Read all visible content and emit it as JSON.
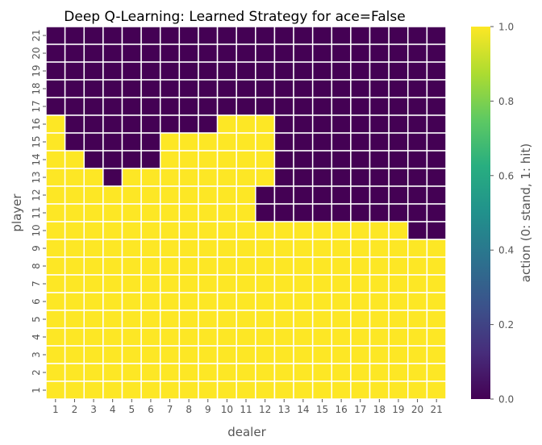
{
  "chart_data": {
    "type": "heatmap",
    "title": "Deep Q-Learning: Learned Strategy for ace=False",
    "xlabel": "dealer",
    "ylabel": "player",
    "x_categories": [
      "1",
      "2",
      "3",
      "4",
      "5",
      "6",
      "7",
      "8",
      "9",
      "10",
      "11",
      "12",
      "13",
      "14",
      "15",
      "16",
      "17",
      "18",
      "19",
      "20",
      "21"
    ],
    "y_categories": [
      "21",
      "20",
      "19",
      "18",
      "17",
      "16",
      "15",
      "14",
      "13",
      "12",
      "11",
      "10",
      "9",
      "8",
      "7",
      "6",
      "5",
      "4",
      "3",
      "2",
      "1"
    ],
    "values": [
      [
        0,
        0,
        0,
        0,
        0,
        0,
        0,
        0,
        0,
        0,
        0,
        0,
        0,
        0,
        0,
        0,
        0,
        0,
        0,
        0,
        0
      ],
      [
        0,
        0,
        0,
        0,
        0,
        0,
        0,
        0,
        0,
        0,
        0,
        0,
        0,
        0,
        0,
        0,
        0,
        0,
        0,
        0,
        0
      ],
      [
        0,
        0,
        0,
        0,
        0,
        0,
        0,
        0,
        0,
        0,
        0,
        0,
        0,
        0,
        0,
        0,
        0,
        0,
        0,
        0,
        0
      ],
      [
        0,
        0,
        0,
        0,
        0,
        0,
        0,
        0,
        0,
        0,
        0,
        0,
        0,
        0,
        0,
        0,
        0,
        0,
        0,
        0,
        0
      ],
      [
        0,
        0,
        0,
        0,
        0,
        0,
        0,
        0,
        0,
        0,
        0,
        0,
        0,
        0,
        0,
        0,
        0,
        0,
        0,
        0,
        0
      ],
      [
        1,
        0,
        0,
        0,
        0,
        0,
        0,
        0,
        0,
        1,
        1,
        1,
        0,
        0,
        0,
        0,
        0,
        0,
        0,
        0,
        0
      ],
      [
        1,
        0,
        0,
        0,
        0,
        0,
        1,
        1,
        1,
        1,
        1,
        1,
        0,
        0,
        0,
        0,
        0,
        0,
        0,
        0,
        0
      ],
      [
        1,
        1,
        0,
        0,
        0,
        0,
        1,
        1,
        1,
        1,
        1,
        1,
        0,
        0,
        0,
        0,
        0,
        0,
        0,
        0,
        0
      ],
      [
        1,
        1,
        1,
        0,
        1,
        1,
        1,
        1,
        1,
        1,
        1,
        1,
        0,
        0,
        0,
        0,
        0,
        0,
        0,
        0,
        0
      ],
      [
        1,
        1,
        1,
        1,
        1,
        1,
        1,
        1,
        1,
        1,
        1,
        0,
        0,
        0,
        0,
        0,
        0,
        0,
        0,
        0,
        0
      ],
      [
        1,
        1,
        1,
        1,
        1,
        1,
        1,
        1,
        1,
        1,
        1,
        0,
        0,
        0,
        0,
        0,
        0,
        0,
        0,
        0,
        0
      ],
      [
        1,
        1,
        1,
        1,
        1,
        1,
        1,
        1,
        1,
        1,
        1,
        1,
        1,
        1,
        1,
        1,
        1,
        1,
        1,
        0,
        0
      ],
      [
        1,
        1,
        1,
        1,
        1,
        1,
        1,
        1,
        1,
        1,
        1,
        1,
        1,
        1,
        1,
        1,
        1,
        1,
        1,
        1,
        1
      ],
      [
        1,
        1,
        1,
        1,
        1,
        1,
        1,
        1,
        1,
        1,
        1,
        1,
        1,
        1,
        1,
        1,
        1,
        1,
        1,
        1,
        1
      ],
      [
        1,
        1,
        1,
        1,
        1,
        1,
        1,
        1,
        1,
        1,
        1,
        1,
        1,
        1,
        1,
        1,
        1,
        1,
        1,
        1,
        1
      ],
      [
        1,
        1,
        1,
        1,
        1,
        1,
        1,
        1,
        1,
        1,
        1,
        1,
        1,
        1,
        1,
        1,
        1,
        1,
        1,
        1,
        1
      ],
      [
        1,
        1,
        1,
        1,
        1,
        1,
        1,
        1,
        1,
        1,
        1,
        1,
        1,
        1,
        1,
        1,
        1,
        1,
        1,
        1,
        1
      ],
      [
        1,
        1,
        1,
        1,
        1,
        1,
        1,
        1,
        1,
        1,
        1,
        1,
        1,
        1,
        1,
        1,
        1,
        1,
        1,
        1,
        1
      ],
      [
        1,
        1,
        1,
        1,
        1,
        1,
        1,
        1,
        1,
        1,
        1,
        1,
        1,
        1,
        1,
        1,
        1,
        1,
        1,
        1,
        1
      ],
      [
        1,
        1,
        1,
        1,
        1,
        1,
        1,
        1,
        1,
        1,
        1,
        1,
        1,
        1,
        1,
        1,
        1,
        1,
        1,
        1,
        1
      ],
      [
        1,
        1,
        1,
        1,
        1,
        1,
        1,
        1,
        1,
        1,
        1,
        1,
        1,
        1,
        1,
        1,
        1,
        1,
        1,
        1,
        1
      ]
    ],
    "colorbar": {
      "label": "action (0: stand, 1: hit)",
      "range": [
        0.0,
        1.0
      ],
      "ticks": [
        "0.0",
        "0.2",
        "0.4",
        "0.6",
        "0.8",
        "1.0"
      ],
      "colormap": "viridis"
    },
    "colors": {
      "low": "#440154",
      "high": "#fde725",
      "text": "#555555",
      "title": "#000000",
      "cell_border": "#ffffff"
    },
    "grid": false
  }
}
